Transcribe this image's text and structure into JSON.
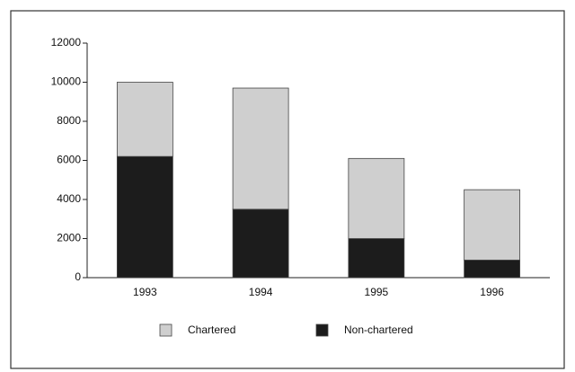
{
  "chart_data": {
    "type": "stacked_bar",
    "categories": [
      "1993",
      "1994",
      "1995",
      "1996"
    ],
    "series": [
      {
        "name": "Chartered",
        "color": "#cfcfcf",
        "values": [
          3800,
          6200,
          4100,
          3600
        ]
      },
      {
        "name": "Non-chartered",
        "color": "#1c1c1c",
        "values": [
          6200,
          3500,
          2000,
          900
        ]
      }
    ],
    "ylim": [
      0,
      12000
    ],
    "yticks": [
      0,
      2000,
      4000,
      6000,
      8000,
      10000,
      12000
    ],
    "grid": false
  }
}
